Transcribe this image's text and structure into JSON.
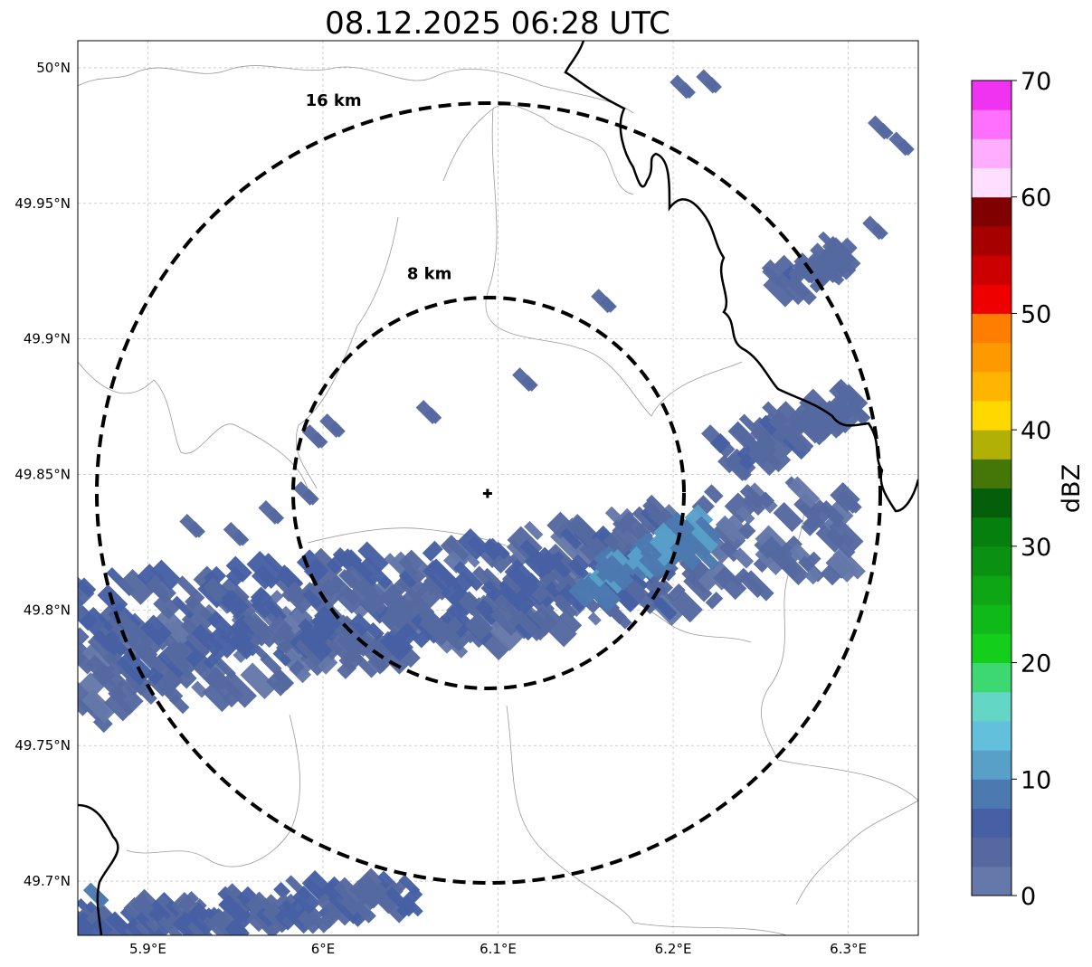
{
  "title": "08.12.2025 06:28 UTC",
  "map": {
    "lon_range": [
      5.86,
      6.34
    ],
    "lat_range": [
      49.68,
      50.01
    ],
    "lon_ticks": [
      {
        "value": 5.9,
        "label": "5.9°E"
      },
      {
        "value": 6.0,
        "label": "6°E"
      },
      {
        "value": 6.1,
        "label": "6.1°E"
      },
      {
        "value": 6.2,
        "label": "6.2°E"
      },
      {
        "value": 6.3,
        "label": "6.3°E"
      }
    ],
    "lat_ticks": [
      {
        "value": 50.0,
        "label": "50°N"
      },
      {
        "value": 49.95,
        "label": "49.95°N"
      },
      {
        "value": 49.9,
        "label": "49.9°N"
      },
      {
        "value": 49.85,
        "label": "49.85°N"
      },
      {
        "value": 49.8,
        "label": "49.8°N"
      },
      {
        "value": 49.75,
        "label": "49.75°N"
      },
      {
        "value": 49.7,
        "label": "49.7°N"
      }
    ],
    "gridlines": true,
    "radar_site": {
      "lon": 6.094,
      "lat": 49.843
    },
    "range_rings": [
      {
        "radius_km": 8,
        "label": "8 km",
        "label_lon": 6.048,
        "label_lat": 49.922
      },
      {
        "radius_km": 16,
        "label": "16 km",
        "label_lon": 5.99,
        "label_lat": 49.986
      }
    ],
    "echo_bands": [
      {
        "from": [
          5.86,
          49.775
        ],
        "to": [
          6.3,
          49.833
        ],
        "dbz": 3
      },
      {
        "from": [
          5.86,
          49.79
        ],
        "to": [
          6.2,
          49.818
        ],
        "dbz": 5
      },
      {
        "from": [
          6.15,
          49.808
        ],
        "to": [
          6.22,
          49.828
        ],
        "dbz": 9
      },
      {
        "from": [
          6.23,
          49.858
        ],
        "to": [
          6.3,
          49.875
        ],
        "dbz": 4
      },
      {
        "from": [
          5.86,
          49.682
        ],
        "to": [
          6.05,
          49.695
        ],
        "dbz": 5
      },
      {
        "from": [
          6.26,
          49.92
        ],
        "to": [
          6.3,
          49.93
        ],
        "dbz": 4
      }
    ],
    "echo_cells": [
      {
        "lon": 6.22,
        "lat": 49.995,
        "dbz": 3
      },
      {
        "lon": 6.205,
        "lat": 49.993,
        "dbz": 3
      },
      {
        "lon": 6.33,
        "lat": 49.972,
        "dbz": 4
      },
      {
        "lon": 6.318,
        "lat": 49.978,
        "dbz": 3
      },
      {
        "lon": 6.315,
        "lat": 49.941,
        "dbz": 4
      },
      {
        "lon": 6.285,
        "lat": 49.931,
        "dbz": 4
      },
      {
        "lon": 6.275,
        "lat": 49.925,
        "dbz": 3
      },
      {
        "lon": 6.16,
        "lat": 49.914,
        "dbz": 3
      },
      {
        "lon": 6.115,
        "lat": 49.885,
        "dbz": 3
      },
      {
        "lon": 6.06,
        "lat": 49.873,
        "dbz": 3
      },
      {
        "lon": 6.005,
        "lat": 49.868,
        "dbz": 3
      },
      {
        "lon": 5.995,
        "lat": 49.864,
        "dbz": 3
      },
      {
        "lon": 6.305,
        "lat": 49.873,
        "dbz": 4
      },
      {
        "lon": 6.237,
        "lat": 49.852,
        "dbz": 3
      },
      {
        "lon": 6.245,
        "lat": 49.842,
        "dbz": 3
      },
      {
        "lon": 6.29,
        "lat": 49.836,
        "dbz": 3
      },
      {
        "lon": 6.3,
        "lat": 49.84,
        "dbz": 3
      },
      {
        "lon": 5.99,
        "lat": 49.843,
        "dbz": 3
      },
      {
        "lon": 5.97,
        "lat": 49.836,
        "dbz": 3
      },
      {
        "lon": 5.925,
        "lat": 49.831,
        "dbz": 3
      },
      {
        "lon": 5.95,
        "lat": 49.828,
        "dbz": 3
      },
      {
        "lon": 5.87,
        "lat": 49.695,
        "dbz": 9
      }
    ]
  },
  "colorbar": {
    "label": "dBZ",
    "min": 0,
    "max": 70,
    "step": 2.5,
    "ticks": [
      "0",
      "10",
      "20",
      "30",
      "40",
      "50",
      "60",
      "70"
    ],
    "colors": [
      "#6478a9",
      "#5569a0",
      "#4660a3",
      "#4b79b0",
      "#58a0c8",
      "#62c0dc",
      "#63d6c6",
      "#3ed873",
      "#13cf1c",
      "#10b91a",
      "#0ea615",
      "#0b9112",
      "#077f0e",
      "#055f0a",
      "#447708",
      "#b0b005",
      "#ffd800",
      "#ffb400",
      "#ff9900",
      "#ff7d00",
      "#ee0000",
      "#cc0000",
      "#a70000",
      "#800000",
      "#ffdfff",
      "#ffadff",
      "#ff70ff",
      "#f033f0"
    ]
  }
}
